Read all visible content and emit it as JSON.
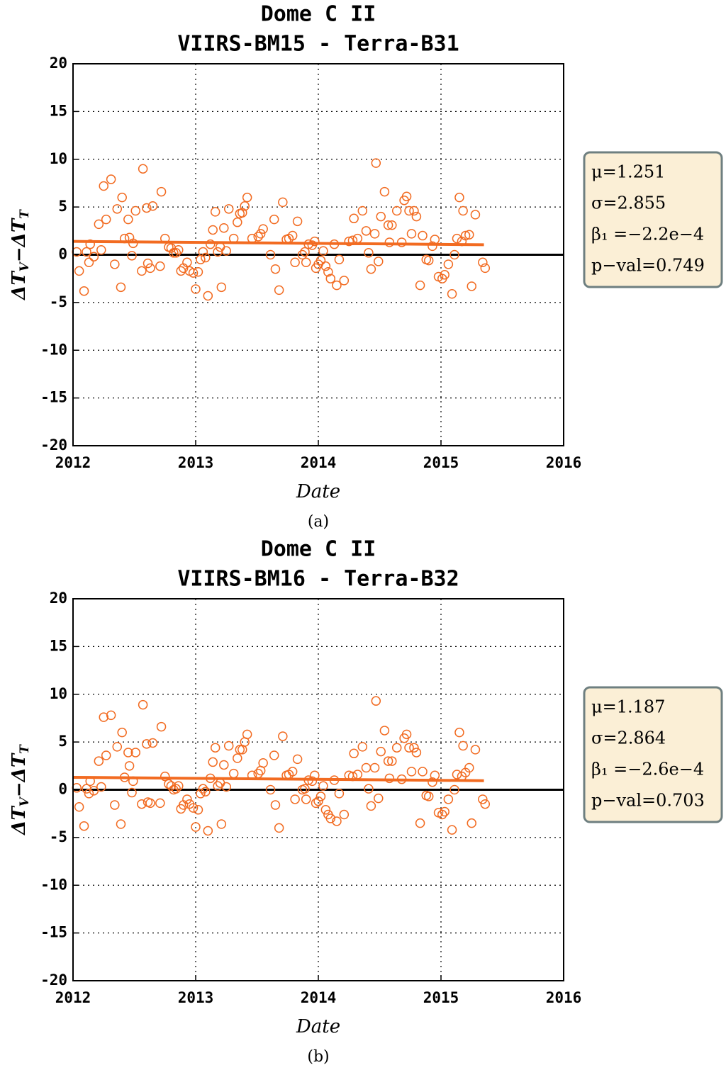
{
  "chart_data": [
    {
      "type": "scatter",
      "title": "Dome C II",
      "subtitle": "VIIRS-BM15 - Terra-B31",
      "xlabel": "Date",
      "ylabel": [
        "ΔT",
        "V",
        "−ΔT",
        "T"
      ],
      "caption": "(a)",
      "annotations": [
        "μ=1.251",
        "σ=2.855",
        "β₁ =−2.2e−4",
        "p−val=0.749"
      ],
      "xlim": [
        2012,
        2016
      ],
      "xticks": [
        2012,
        2013,
        2014,
        2015,
        2016
      ],
      "ylim": [
        -20,
        20
      ],
      "yticks": [
        -20,
        -15,
        -10,
        -5,
        0,
        5,
        10,
        15,
        20
      ],
      "grid": true,
      "hline": 0,
      "hline_color": "#000000",
      "series": [
        {
          "color": "#f26b21",
          "style": "markers",
          "x": [
            2012.03,
            2012.05,
            2012.09,
            2012.11,
            2012.13,
            2012.14,
            2012.17,
            2012.21,
            2012.23,
            2012.25,
            2012.27,
            2012.31,
            2012.34,
            2012.36,
            2012.39,
            2012.4,
            2012.42,
            2012.45,
            2012.46,
            2012.48,
            2012.49,
            2012.51,
            2012.56,
            2012.57,
            2012.6,
            2012.61,
            2012.63,
            2012.65,
            2012.71,
            2012.72,
            2012.75,
            2012.78,
            2012.8,
            2012.82,
            2012.84,
            2012.86,
            2012.88,
            2012.9,
            2012.93,
            2012.95,
            2012.98,
            2013.0,
            2013.02,
            2013.04,
            2013.06,
            2013.08,
            2013.1,
            2013.12,
            2013.14,
            2013.16,
            2013.18,
            2013.2,
            2013.21,
            2013.23,
            2013.25,
            2013.27,
            2013.31,
            2013.34,
            2013.36,
            2013.38,
            2013.4,
            2013.42,
            2013.46,
            2013.51,
            2013.53,
            2013.55,
            2013.61,
            2013.64,
            2013.65,
            2013.68,
            2013.71,
            2013.74,
            2013.76,
            2013.79,
            2013.81,
            2013.83,
            2013.87,
            2013.89,
            2013.9,
            2013.92,
            2013.95,
            2013.97,
            2013.98,
            2014.0,
            2014.02,
            2014.04,
            2014.06,
            2014.08,
            2014.1,
            2014.13,
            2014.15,
            2014.17,
            2014.21,
            2014.25,
            2014.28,
            2014.29,
            2014.32,
            2014.36,
            2014.39,
            2014.41,
            2014.43,
            2014.46,
            2014.47,
            2014.49,
            2014.51,
            2014.54,
            2014.57,
            2014.58,
            2014.6,
            2014.64,
            2014.68,
            2014.7,
            2014.72,
            2014.74,
            2014.76,
            2014.78,
            2014.8,
            2014.83,
            2014.85,
            2014.88,
            2014.9,
            2014.93,
            2014.95,
            2014.98,
            2015.01,
            2015.03,
            2015.06,
            2015.09,
            2015.11,
            2015.13,
            2015.15,
            2015.17,
            2015.18,
            2015.2,
            2015.23,
            2015.25,
            2015.28,
            2015.34,
            2015.36
          ],
          "values": [
            0.3,
            -1.7,
            -3.8,
            0.3,
            -0.8,
            1.1,
            -0.2,
            3.2,
            0.5,
            7.2,
            3.7,
            7.9,
            -1.0,
            4.8,
            -3.4,
            6.0,
            1.7,
            3.7,
            1.8,
            -0.1,
            1.2,
            4.6,
            -1.7,
            9.0,
            4.9,
            -0.9,
            -1.4,
            5.1,
            -1.2,
            6.6,
            1.7,
            0.8,
            0.7,
            0.2,
            0.2,
            0.5,
            -1.7,
            -1.4,
            -0.8,
            -1.7,
            -1.9,
            -3.6,
            -1.8,
            -0.5,
            0.3,
            -0.3,
            -4.3,
            1.1,
            2.6,
            4.5,
            0.3,
            0.8,
            -3.4,
            2.8,
            0.4,
            4.8,
            1.7,
            3.4,
            4.3,
            4.4,
            5.1,
            6.0,
            1.7,
            1.9,
            2.2,
            2.7,
            0.0,
            3.7,
            -1.5,
            -3.7,
            5.5,
            1.6,
            1.7,
            2.0,
            -0.8,
            3.5,
            0.0,
            0.3,
            -0.8,
            1.1,
            1.0,
            1.4,
            -1.4,
            -1.0,
            -0.6,
            0.4,
            -1.2,
            -1.8,
            -2.5,
            1.1,
            -3.2,
            -0.5,
            -2.7,
            1.4,
            1.5,
            3.8,
            1.7,
            4.6,
            2.5,
            0.2,
            -1.5,
            2.2,
            9.6,
            -0.7,
            4.0,
            6.6,
            3.1,
            1.3,
            3.1,
            4.6,
            1.3,
            5.7,
            6.1,
            4.6,
            2.2,
            4.6,
            4.0,
            -3.2,
            2.0,
            -0.5,
            -0.6,
            0.9,
            1.6,
            -2.3,
            -2.5,
            -2.1,
            -1.0,
            -4.1,
            0.0,
            1.7,
            6.0,
            1.4,
            4.6,
            2.0,
            2.1,
            -3.3,
            4.2,
            -0.8,
            -1.4
          ]
        },
        {
          "color": "#f26b21",
          "style": "line",
          "x": [
            2012.0,
            2015.35
          ],
          "values": [
            1.4,
            1.05
          ]
        }
      ]
    },
    {
      "type": "scatter",
      "title": "Dome C II",
      "subtitle": "VIIRS-BM16 - Terra-B32",
      "xlabel": "Date",
      "ylabel": [
        "ΔT",
        "V",
        "−ΔT",
        "T"
      ],
      "caption": "(b)",
      "annotations": [
        "μ=1.187",
        "σ=2.864",
        "β₁ =−2.6e−4",
        "p−val=0.703"
      ],
      "xlim": [
        2012,
        2016
      ],
      "xticks": [
        2012,
        2013,
        2014,
        2015,
        2016
      ],
      "ylim": [
        -20,
        20
      ],
      "yticks": [
        -20,
        -15,
        -10,
        -5,
        0,
        5,
        10,
        15,
        20
      ],
      "grid": true,
      "hline": 0,
      "hline_color": "#000000",
      "series": [
        {
          "color": "#f26b21",
          "style": "markers",
          "x": [
            2012.03,
            2012.05,
            2012.09,
            2012.11,
            2012.13,
            2012.14,
            2012.17,
            2012.21,
            2012.23,
            2012.25,
            2012.27,
            2012.31,
            2012.34,
            2012.36,
            2012.39,
            2012.4,
            2012.42,
            2012.45,
            2012.46,
            2012.48,
            2012.49,
            2012.51,
            2012.56,
            2012.57,
            2012.6,
            2012.61,
            2012.63,
            2012.65,
            2012.71,
            2012.72,
            2012.75,
            2012.78,
            2012.8,
            2012.82,
            2012.84,
            2012.86,
            2012.88,
            2012.9,
            2012.93,
            2012.95,
            2012.98,
            2013.0,
            2013.02,
            2013.04,
            2013.06,
            2013.08,
            2013.1,
            2013.12,
            2013.14,
            2013.16,
            2013.18,
            2013.2,
            2013.21,
            2013.23,
            2013.25,
            2013.27,
            2013.31,
            2013.34,
            2013.36,
            2013.38,
            2013.4,
            2013.42,
            2013.46,
            2013.51,
            2013.53,
            2013.55,
            2013.61,
            2013.64,
            2013.65,
            2013.68,
            2013.71,
            2013.74,
            2013.76,
            2013.79,
            2013.81,
            2013.83,
            2013.87,
            2013.89,
            2013.9,
            2013.92,
            2013.95,
            2013.97,
            2013.98,
            2014.0,
            2014.02,
            2014.04,
            2014.06,
            2014.08,
            2014.1,
            2014.13,
            2014.15,
            2014.17,
            2014.21,
            2014.25,
            2014.28,
            2014.29,
            2014.32,
            2014.36,
            2014.39,
            2014.41,
            2014.43,
            2014.46,
            2014.47,
            2014.49,
            2014.51,
            2014.54,
            2014.57,
            2014.58,
            2014.6,
            2014.64,
            2014.68,
            2014.7,
            2014.72,
            2014.74,
            2014.76,
            2014.78,
            2014.8,
            2014.83,
            2014.85,
            2014.88,
            2014.9,
            2014.93,
            2014.95,
            2014.98,
            2015.01,
            2015.03,
            2015.06,
            2015.09,
            2015.11,
            2015.13,
            2015.15,
            2015.17,
            2015.18,
            2015.2,
            2015.23,
            2015.25,
            2015.28,
            2015.34,
            2015.36
          ],
          "values": [
            0.2,
            -1.8,
            -3.8,
            0.1,
            -0.4,
            0.9,
            -0.1,
            3.0,
            0.3,
            7.6,
            3.6,
            7.8,
            -1.6,
            4.5,
            -3.6,
            6.0,
            1.3,
            3.9,
            2.5,
            -0.3,
            0.9,
            3.9,
            -1.5,
            8.9,
            4.8,
            -1.3,
            -1.4,
            4.9,
            -1.4,
            6.6,
            1.4,
            0.6,
            0.4,
            0.0,
            0.1,
            0.4,
            -2.0,
            -1.6,
            -1.0,
            -1.5,
            -1.9,
            -3.9,
            -2.1,
            -0.4,
            0.1,
            -0.2,
            -4.3,
            1.2,
            2.9,
            4.4,
            0.4,
            0.7,
            -3.6,
            2.6,
            0.3,
            4.6,
            1.7,
            3.3,
            4.2,
            4.2,
            5.0,
            5.8,
            1.5,
            1.7,
            2.0,
            2.8,
            0.0,
            3.6,
            -1.6,
            -4.0,
            5.6,
            1.5,
            1.6,
            1.9,
            -1.0,
            3.2,
            0.0,
            0.1,
            -1.0,
            1.0,
            0.9,
            1.5,
            -1.4,
            -1.2,
            -0.7,
            0.4,
            -2.1,
            -2.6,
            -3.0,
            1.0,
            -3.3,
            -0.4,
            -2.6,
            1.5,
            1.4,
            3.8,
            1.6,
            4.5,
            2.3,
            0.1,
            -1.7,
            2.3,
            9.3,
            -0.9,
            4.0,
            6.2,
            3.0,
            1.2,
            3.0,
            4.4,
            1.1,
            5.4,
            5.8,
            4.4,
            1.9,
            4.4,
            3.9,
            -3.5,
            1.9,
            -0.6,
            -0.7,
            0.8,
            1.5,
            -2.4,
            -2.6,
            -2.3,
            -1.0,
            -4.2,
            0.0,
            1.6,
            6.0,
            1.4,
            4.6,
            1.8,
            2.3,
            -3.5,
            4.2,
            -1.0,
            -1.5
          ]
        },
        {
          "color": "#f26b21",
          "style": "line",
          "x": [
            2012.0,
            2015.35
          ],
          "values": [
            1.3,
            0.95
          ]
        }
      ]
    }
  ]
}
